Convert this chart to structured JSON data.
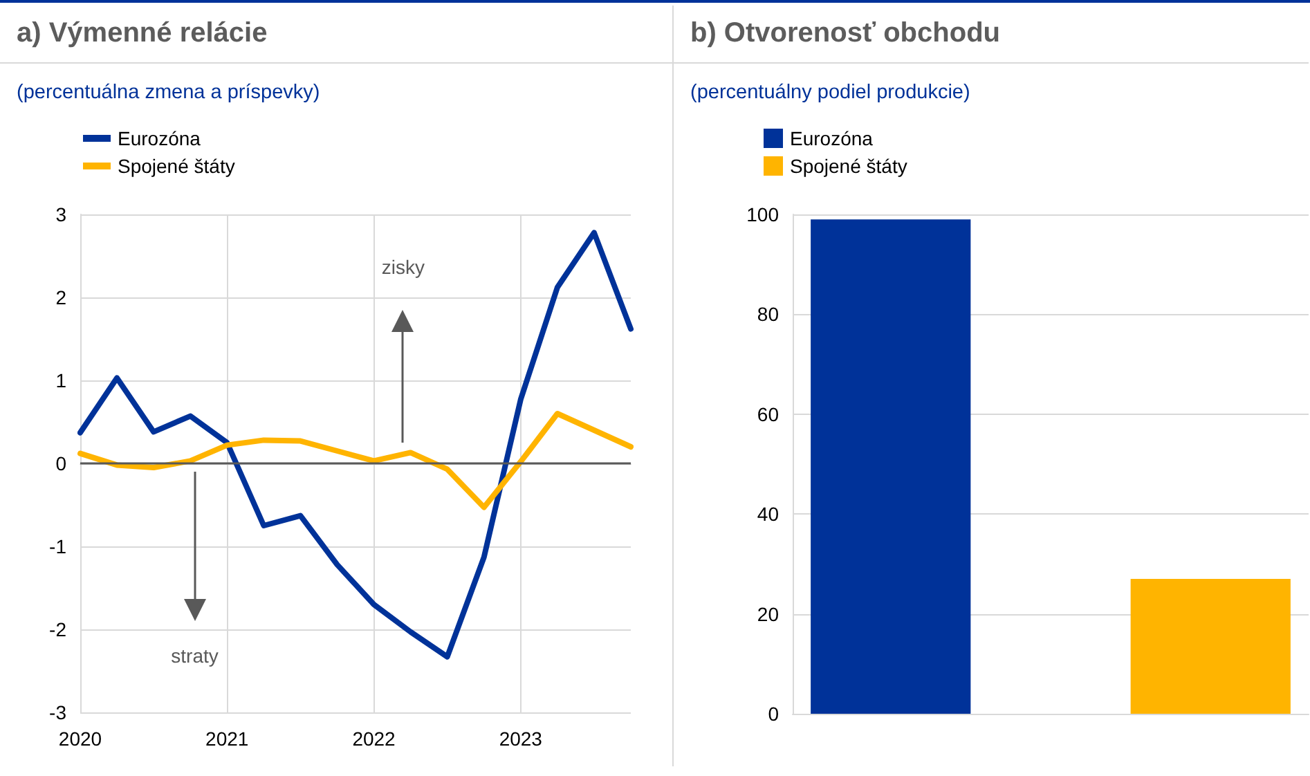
{
  "chart_data": [
    {
      "type": "line",
      "title": "a) Výmenné relácie",
      "subtitle": "(percentuálna zmena a príspevky)",
      "x": [
        2020,
        2020.25,
        2020.5,
        2020.75,
        2021,
        2021.25,
        2021.5,
        2021.75,
        2022,
        2022.25,
        2022.5,
        2022.75,
        2023,
        2023.25,
        2023.5,
        2023.75
      ],
      "xlim": [
        2020,
        2023.75
      ],
      "xticks": [
        2020,
        2021,
        2022,
        2023
      ],
      "ylim": [
        -3,
        3
      ],
      "yticks": [
        -3,
        -2,
        -1,
        0,
        1,
        2,
        3
      ],
      "series": [
        {
          "name": "Eurozóna",
          "color": "#003299",
          "values": [
            0.37,
            1.03,
            0.38,
            0.57,
            0.25,
            -0.75,
            -0.63,
            -1.22,
            -1.7,
            -2.03,
            -2.33,
            -1.13,
            0.77,
            2.12,
            2.78,
            1.62
          ]
        },
        {
          "name": "Spojené štáty",
          "color": "#ffb400",
          "values": [
            0.12,
            -0.02,
            -0.05,
            0.03,
            0.22,
            0.28,
            0.27,
            0.15,
            0.03,
            0.13,
            -0.07,
            -0.53,
            0.02,
            0.6,
            0.4,
            0.2
          ]
        }
      ],
      "ref_lines": [
        {
          "axis": "y",
          "value": 0,
          "color": "#595959"
        }
      ],
      "annotations": [
        "zisky",
        "straty"
      ],
      "grid": true,
      "legend": "top left",
      "marker": "none"
    },
    {
      "type": "bar",
      "title": "b) Otvorenosť obchodu",
      "subtitle": "(percentuálny podiel produkcie)",
      "categories": [
        null
      ],
      "ylim": [
        0,
        100
      ],
      "yticks": [
        0,
        20,
        40,
        60,
        80,
        100
      ],
      "series": [
        {
          "name": "Eurozóna",
          "color": "#003299",
          "values": [
            99
          ]
        },
        {
          "name": "Spojené štáty",
          "color": "#ffb400",
          "values": [
            27
          ]
        }
      ],
      "grid": "y",
      "legend": "top left"
    }
  ]
}
